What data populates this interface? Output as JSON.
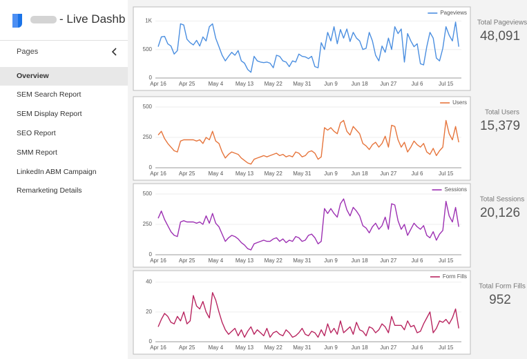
{
  "header": {
    "title": "- Live Dashb"
  },
  "sidebar": {
    "heading": "Pages",
    "items": [
      "Overview",
      "SEM Search Report",
      "SEM Display Report",
      "SEO Report",
      "SMM Report",
      "LinkedIn ABM Campaign",
      "Remarketing Details"
    ]
  },
  "kpis": [
    {
      "label": "Total Pageviews",
      "value": "48,091"
    },
    {
      "label": "Total Users",
      "value": "15,379"
    },
    {
      "label": "Total Sessions",
      "value": "20,126"
    },
    {
      "label": "Total Form Fills",
      "value": "952"
    }
  ],
  "chart_data": [
    {
      "type": "line",
      "grid": true,
      "legend": "top-right",
      "ylim": [
        0,
        1150
      ],
      "yticks": [
        0,
        500,
        {
          "value": 1000,
          "label": "1K"
        }
      ],
      "categories": [
        "Apr 16",
        null,
        null,
        null,
        null,
        null,
        null,
        null,
        null,
        "Apr 25",
        null,
        null,
        null,
        null,
        null,
        null,
        null,
        null,
        "May 4",
        null,
        null,
        null,
        null,
        null,
        null,
        null,
        null,
        "May 13",
        null,
        null,
        null,
        null,
        null,
        null,
        null,
        null,
        "May 22",
        null,
        null,
        null,
        null,
        null,
        null,
        null,
        null,
        "May 31",
        null,
        null,
        null,
        null,
        null,
        null,
        null,
        null,
        "Jun 9",
        null,
        null,
        null,
        null,
        null,
        null,
        null,
        null,
        "Jun 18",
        null,
        null,
        null,
        null,
        null,
        null,
        null,
        null,
        "Jun 27",
        null,
        null,
        null,
        null,
        null,
        null,
        null,
        null,
        "Jul 6",
        null,
        null,
        null,
        null,
        null,
        null,
        null,
        null,
        "Jul 15",
        null,
        null,
        null,
        null
      ],
      "series": [
        {
          "name": "Pageviews",
          "color": "#4a8ee0",
          "values": [
            550,
            720,
            730,
            600,
            560,
            420,
            480,
            950,
            930,
            680,
            620,
            580,
            660,
            560,
            720,
            650,
            900,
            950,
            700,
            550,
            400,
            300,
            380,
            450,
            400,
            480,
            300,
            260,
            150,
            100,
            380,
            300,
            280,
            270,
            280,
            260,
            180,
            400,
            380,
            300,
            280,
            200,
            300,
            280,
            420,
            380,
            370,
            340,
            380,
            200,
            180,
            620,
            500,
            800,
            650,
            900,
            600,
            850,
            700,
            860,
            640,
            800,
            700,
            650,
            500,
            520,
            800,
            650,
            400,
            300,
            560,
            450,
            700,
            500,
            900,
            780,
            860,
            280,
            780,
            650,
            550,
            600,
            250,
            230,
            550,
            800,
            700,
            350,
            300,
            520,
            900,
            750,
            650,
            980,
            550
          ]
        }
      ]
    },
    {
      "type": "line",
      "grid": true,
      "legend": "top-right",
      "ylim": [
        0,
        540
      ],
      "yticks": [
        0,
        250,
        500
      ],
      "categories": [
        "Apr 16",
        null,
        null,
        null,
        null,
        null,
        null,
        null,
        null,
        "Apr 25",
        null,
        null,
        null,
        null,
        null,
        null,
        null,
        null,
        "May 4",
        null,
        null,
        null,
        null,
        null,
        null,
        null,
        null,
        "May 13",
        null,
        null,
        null,
        null,
        null,
        null,
        null,
        null,
        "May 22",
        null,
        null,
        null,
        null,
        null,
        null,
        null,
        null,
        "May 31",
        null,
        null,
        null,
        null,
        null,
        null,
        null,
        null,
        "Jun 9",
        null,
        null,
        null,
        null,
        null,
        null,
        null,
        null,
        "Jun 18",
        null,
        null,
        null,
        null,
        null,
        null,
        null,
        null,
        "Jun 27",
        null,
        null,
        null,
        null,
        null,
        null,
        null,
        null,
        "Jul 6",
        null,
        null,
        null,
        null,
        null,
        null,
        null,
        null,
        "Jul 15",
        null,
        null,
        null,
        null
      ],
      "series": [
        {
          "name": "Users",
          "color": "#e6743b",
          "values": [
            270,
            300,
            240,
            200,
            170,
            140,
            130,
            220,
            230,
            230,
            230,
            230,
            220,
            230,
            200,
            250,
            230,
            300,
            220,
            200,
            130,
            80,
            110,
            130,
            120,
            110,
            80,
            60,
            40,
            30,
            70,
            80,
            90,
            100,
            90,
            100,
            110,
            120,
            100,
            110,
            90,
            100,
            90,
            130,
            120,
            90,
            100,
            130,
            140,
            120,
            70,
            90,
            330,
            310,
            330,
            300,
            280,
            370,
            390,
            300,
            270,
            340,
            310,
            280,
            200,
            180,
            150,
            190,
            210,
            170,
            200,
            260,
            170,
            350,
            340,
            230,
            170,
            210,
            130,
            170,
            220,
            190,
            170,
            200,
            130,
            110,
            160,
            100,
            140,
            170,
            390,
            280,
            230,
            340,
            210
          ]
        }
      ]
    },
    {
      "type": "line",
      "grid": true,
      "legend": "top-right",
      "ylim": [
        0,
        540
      ],
      "yticks": [
        0,
        250,
        500
      ],
      "categories": [
        "Apr 16",
        null,
        null,
        null,
        null,
        null,
        null,
        null,
        null,
        "Apr 25",
        null,
        null,
        null,
        null,
        null,
        null,
        null,
        null,
        "May 4",
        null,
        null,
        null,
        null,
        null,
        null,
        null,
        null,
        "May 13",
        null,
        null,
        null,
        null,
        null,
        null,
        null,
        null,
        "May 22",
        null,
        null,
        null,
        null,
        null,
        null,
        null,
        null,
        "May 31",
        null,
        null,
        null,
        null,
        null,
        null,
        null,
        null,
        "Jun 9",
        null,
        null,
        null,
        null,
        null,
        null,
        null,
        null,
        "Jun 18",
        null,
        null,
        null,
        null,
        null,
        null,
        null,
        null,
        "Jun 27",
        null,
        null,
        null,
        null,
        null,
        null,
        null,
        null,
        "Jul 6",
        null,
        null,
        null,
        null,
        null,
        null,
        null,
        null,
        "Jul 15",
        null,
        null,
        null,
        null
      ],
      "series": [
        {
          "name": "Sessions",
          "color": "#9c2fb2",
          "values": [
            300,
            360,
            290,
            240,
            190,
            160,
            150,
            270,
            280,
            270,
            270,
            270,
            260,
            270,
            250,
            320,
            260,
            340,
            260,
            230,
            170,
            110,
            140,
            160,
            150,
            130,
            100,
            80,
            50,
            40,
            90,
            100,
            110,
            120,
            110,
            110,
            130,
            140,
            110,
            130,
            100,
            120,
            110,
            150,
            140,
            110,
            120,
            160,
            170,
            140,
            90,
            110,
            380,
            340,
            380,
            340,
            310,
            420,
            460,
            370,
            320,
            390,
            360,
            320,
            240,
            220,
            180,
            230,
            260,
            210,
            240,
            310,
            210,
            420,
            410,
            280,
            210,
            250,
            160,
            210,
            260,
            230,
            210,
            240,
            160,
            140,
            190,
            120,
            170,
            200,
            440,
            320,
            270,
            390,
            230
          ]
        }
      ]
    },
    {
      "type": "line",
      "grid": true,
      "legend": "top-right",
      "ylim": [
        0,
        44
      ],
      "yticks": [
        0,
        20,
        40
      ],
      "categories": [
        "Apr 16",
        null,
        null,
        null,
        null,
        null,
        null,
        null,
        null,
        "Apr 25",
        null,
        null,
        null,
        null,
        null,
        null,
        null,
        null,
        "May 4",
        null,
        null,
        null,
        null,
        null,
        null,
        null,
        null,
        "May 13",
        null,
        null,
        null,
        null,
        null,
        null,
        null,
        null,
        "May 22",
        null,
        null,
        null,
        null,
        null,
        null,
        null,
        null,
        "May 31",
        null,
        null,
        null,
        null,
        null,
        null,
        null,
        null,
        "Jun 9",
        null,
        null,
        null,
        null,
        null,
        null,
        null,
        null,
        "Jun 18",
        null,
        null,
        null,
        null,
        null,
        null,
        null,
        null,
        "Jun 27",
        null,
        null,
        null,
        null,
        null,
        null,
        null,
        null,
        "Jul 6",
        null,
        null,
        null,
        null,
        null,
        null,
        null,
        null,
        "Jul 15",
        null,
        null,
        null,
        null
      ],
      "series": [
        {
          "name": "Form Fills",
          "color": "#b8245f",
          "values": [
            10,
            15,
            19,
            17,
            13,
            12,
            17,
            14,
            20,
            12,
            14,
            31,
            24,
            22,
            27,
            20,
            16,
            33,
            28,
            20,
            13,
            8,
            5,
            7,
            9,
            4,
            8,
            3,
            7,
            10,
            5,
            8,
            6,
            4,
            9,
            3,
            6,
            7,
            5,
            4,
            8,
            6,
            3,
            4,
            6,
            9,
            5,
            4,
            7,
            6,
            3,
            8,
            4,
            12,
            6,
            9,
            5,
            14,
            6,
            8,
            10,
            5,
            13,
            8,
            7,
            4,
            10,
            9,
            6,
            8,
            12,
            10,
            6,
            17,
            11,
            11,
            11,
            8,
            14,
            10,
            11,
            6,
            7,
            12,
            16,
            20,
            6,
            9,
            14,
            13,
            15,
            12,
            16,
            22,
            9
          ]
        }
      ]
    }
  ]
}
